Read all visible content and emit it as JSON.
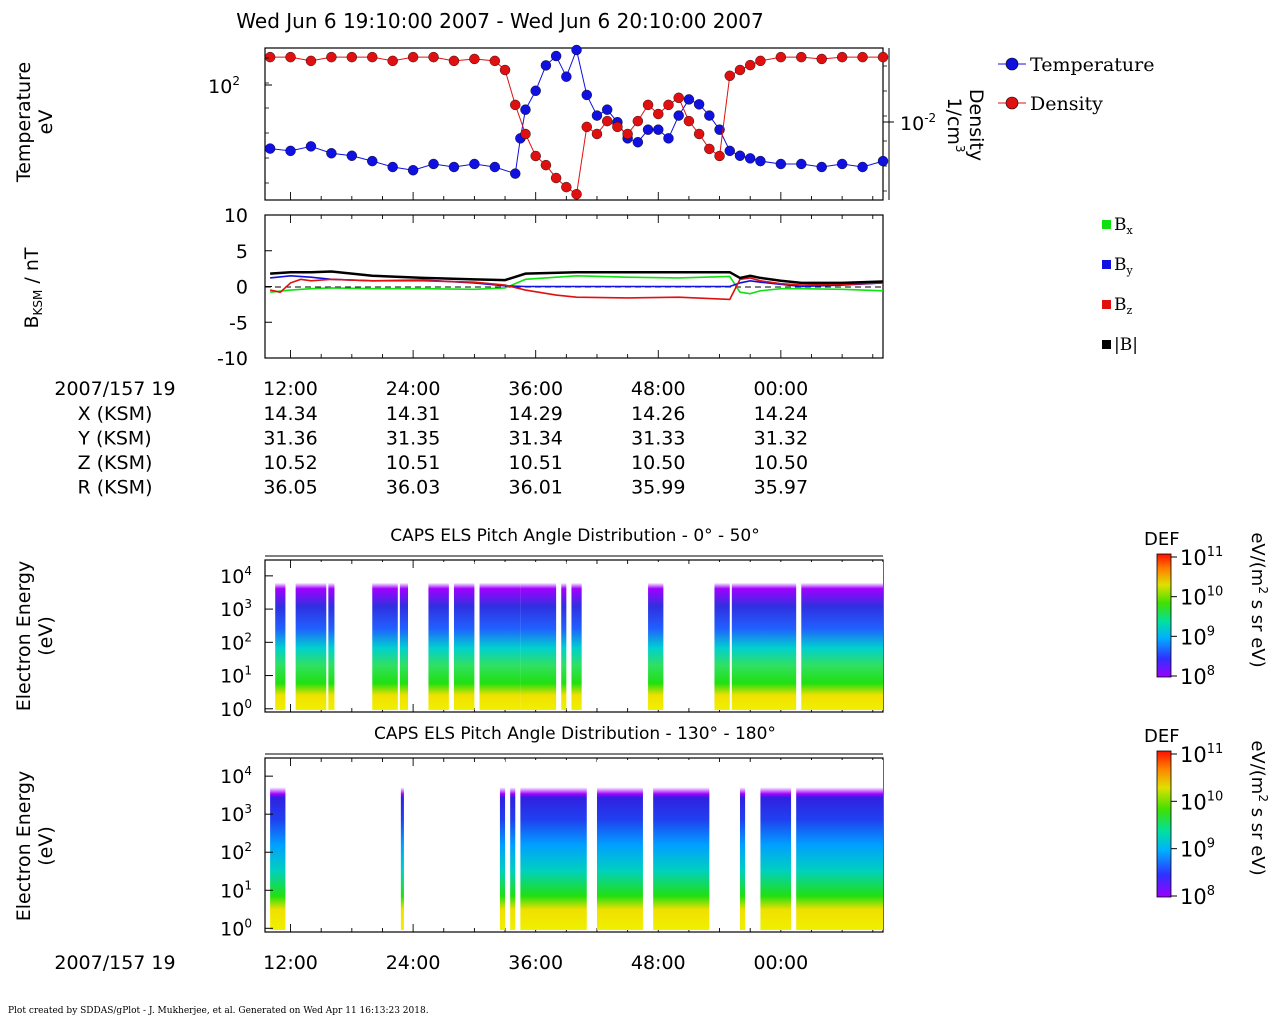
{
  "title": "Wed Jun  6 19:10:00 2007 - Wed Jun  6 20:10:00 2007",
  "footer": "Plot created by SDDAS/gPlot - J. Mukherjee, et al.  Generated on Wed Apr 11 16:13:23 2018.",
  "colors": {
    "temperature": "#1010e0",
    "density": "#e01010",
    "bx": "#10e010",
    "by": "#1010e0",
    "bz": "#e01010",
    "btot": "#000000"
  },
  "x_tick_labels": [
    "12:00",
    "24:00",
    "36:00",
    "48:00",
    "00:00"
  ],
  "ephemeris": {
    "header": "2007/157 19",
    "rows": [
      {
        "label": "X (KSM)",
        "values": [
          "14.34",
          "14.31",
          "14.29",
          "14.26",
          "14.24"
        ]
      },
      {
        "label": "Y (KSM)",
        "values": [
          "31.36",
          "31.35",
          "31.34",
          "31.33",
          "31.32"
        ]
      },
      {
        "label": "Z (KSM)",
        "values": [
          "10.52",
          "10.51",
          "10.51",
          "10.50",
          "10.50"
        ]
      },
      {
        "label": "R (KSM)",
        "values": [
          "36.05",
          "36.03",
          "36.01",
          "35.99",
          "35.97"
        ]
      }
    ]
  },
  "panel1": {
    "ylabel_line1": "Temperature",
    "ylabel_line2": "eV",
    "y2label_line1": "Density",
    "y2label_line2": "1/cm",
    "y2label_sup": "3",
    "ytick_base": "10",
    "ytick_exp": "2",
    "y2tick_base": "10",
    "y2tick_exp": "-2",
    "legend_temperature": "Temperature",
    "legend_density": "Density"
  },
  "panel2": {
    "ylabel_main": "B",
    "ylabel_sub": "KSM",
    "ylabel_rest": " / nT",
    "yticks": [
      "10",
      "5",
      "0",
      "-5",
      "-10"
    ],
    "legend": [
      {
        "main": "B",
        "sub": "x"
      },
      {
        "main": "B",
        "sub": "y"
      },
      {
        "main": "B",
        "sub": "z"
      },
      {
        "main": "|B|",
        "sub": ""
      }
    ]
  },
  "spectrogram1": {
    "title": "CAPS ELS Pitch Angle Distribution - 0° - 50°",
    "ylabel_line1": "Electron Energy",
    "ylabel_line2": "(eV)",
    "colorbar_title": "DEF",
    "colorbar_units": "eV/(m",
    "colorbar_units_sup": "2",
    "colorbar_units_rest": " s sr eV)"
  },
  "spectrogram2": {
    "title": "CAPS ELS Pitch Angle Distribution - 130° - 180°",
    "ylabel_line1": "Electron Energy",
    "ylabel_line2": "(eV)",
    "colorbar_title": "DEF",
    "colorbar_units": "eV/(m",
    "colorbar_units_sup": "2",
    "colorbar_units_rest": " s sr eV)"
  },
  "spectrogram_yticks": [
    {
      "base": "10",
      "exp": "4"
    },
    {
      "base": "10",
      "exp": "3"
    },
    {
      "base": "10",
      "exp": "2"
    },
    {
      "base": "10",
      "exp": "1"
    },
    {
      "base": "10",
      "exp": "0"
    }
  ],
  "colorbar_ticks": [
    {
      "base": "10",
      "exp": "11"
    },
    {
      "base": "10",
      "exp": "10"
    },
    {
      "base": "10",
      "exp": "9"
    },
    {
      "base": "10",
      "exp": "8"
    }
  ],
  "bottom_axis": {
    "header": "2007/157 19"
  },
  "chart_data": [
    {
      "type": "scatter",
      "title": "",
      "xlabel": "",
      "ylabel": "Temperature eV",
      "y2label": "Density 1/cm3",
      "x_unit": "minutes after 19:00",
      "xlim": [
        9.5,
        70
      ],
      "ylog": true,
      "series": [
        {
          "name": "Temperature",
          "axis": "left",
          "x": [
            10,
            12,
            14,
            16,
            18,
            20,
            22,
            24,
            26,
            28,
            30,
            32,
            34,
            34.5,
            35,
            36,
            37,
            38,
            39,
            40,
            41,
            42,
            43,
            44,
            45,
            46,
            47,
            48,
            49,
            50,
            51,
            52,
            53,
            54,
            55,
            56,
            57,
            58,
            60,
            62,
            64,
            66,
            68,
            70
          ],
          "y": [
            25,
            24,
            26,
            23,
            22,
            20,
            18,
            17,
            19,
            18,
            19,
            18,
            16,
            30,
            50,
            70,
            110,
            130,
            90,
            160,
            65,
            45,
            50,
            40,
            30,
            28,
            35,
            35,
            30,
            45,
            60,
            55,
            45,
            35,
            24,
            22,
            21,
            20,
            19,
            19,
            18,
            19,
            18,
            20
          ]
        },
        {
          "name": "Density",
          "axis": "right",
          "x": [
            10,
            12,
            14,
            16,
            18,
            20,
            22,
            24,
            26,
            28,
            30,
            32,
            33,
            34,
            35,
            36,
            37,
            38,
            39,
            40,
            41,
            42,
            43,
            44,
            45,
            46,
            47,
            48,
            49,
            50,
            51,
            52,
            53,
            54,
            55,
            56,
            57,
            58,
            60,
            62,
            64,
            66,
            68,
            70
          ],
          "y": [
            0.09,
            0.09,
            0.08,
            0.09,
            0.09,
            0.09,
            0.08,
            0.09,
            0.09,
            0.08,
            0.085,
            0.08,
            0.06,
            0.02,
            0.008,
            0.004,
            0.003,
            0.002,
            0.0015,
            0.0012,
            0.01,
            0.008,
            0.012,
            0.01,
            0.008,
            0.012,
            0.02,
            0.015,
            0.02,
            0.025,
            0.012,
            0.008,
            0.005,
            0.004,
            0.05,
            0.06,
            0.07,
            0.08,
            0.09,
            0.09,
            0.085,
            0.09,
            0.09,
            0.09
          ]
        }
      ]
    },
    {
      "type": "line",
      "title": "",
      "xlabel": "",
      "ylabel": "BKSM / nT",
      "x_unit": "minutes after 19:00",
      "xlim": [
        9.5,
        70
      ],
      "ylim": [
        -10,
        10
      ],
      "series": [
        {
          "name": "Bx",
          "x": [
            10,
            12,
            14,
            16,
            20,
            25,
            30,
            33,
            35,
            40,
            45,
            50,
            55,
            56,
            57,
            58,
            60,
            62,
            66,
            70
          ],
          "y": [
            -0.8,
            -0.5,
            -0.3,
            -0.2,
            -0.3,
            -0.3,
            -0.4,
            -0.2,
            1.0,
            1.5,
            1.3,
            1.2,
            1.4,
            -0.8,
            -1.0,
            -0.6,
            -0.3,
            -0.3,
            -0.4,
            -0.6
          ]
        },
        {
          "name": "By",
          "x": [
            10,
            12,
            14,
            16,
            20,
            25,
            30,
            33,
            35,
            40,
            45,
            50,
            55,
            56,
            57,
            58,
            60,
            62,
            66,
            70
          ],
          "y": [
            1.2,
            1.5,
            1.3,
            1.0,
            0.8,
            0.9,
            0.5,
            0.1,
            0.0,
            0.0,
            0.0,
            0.0,
            0.0,
            0.5,
            0.8,
            0.6,
            0.3,
            0.0,
            0.2,
            0.5
          ]
        },
        {
          "name": "Bz",
          "x": [
            10,
            11,
            12,
            13,
            14,
            16,
            20,
            25,
            30,
            33,
            35,
            38,
            40,
            45,
            50,
            55,
            56,
            57,
            58,
            60,
            62,
            66,
            70
          ],
          "y": [
            -0.5,
            -0.8,
            0.5,
            1.0,
            0.8,
            1.0,
            0.8,
            0.8,
            0.6,
            0.2,
            -0.5,
            -1.2,
            -1.5,
            -1.6,
            -1.5,
            -1.8,
            1.0,
            1.2,
            0.8,
            0.4,
            0.2,
            0.3,
            0.5
          ]
        },
        {
          "name": "|B|",
          "x": [
            10,
            12,
            14,
            16,
            20,
            25,
            30,
            33,
            35,
            40,
            45,
            50,
            55,
            56,
            57,
            58,
            60,
            62,
            66,
            70
          ],
          "y": [
            1.8,
            2.0,
            2.0,
            2.1,
            1.5,
            1.2,
            1.0,
            0.9,
            1.8,
            2.0,
            2.0,
            2.0,
            2.0,
            1.2,
            1.5,
            1.2,
            0.8,
            0.5,
            0.5,
            0.7
          ]
        }
      ]
    },
    {
      "type": "heatmap",
      "title": "CAPS ELS Pitch Angle Distribution - 0° - 50°",
      "xlabel": "",
      "ylabel": "Electron Energy (eV)",
      "ylog": true,
      "ylim": [
        0.8,
        30000
      ],
      "colorbar": "DEF eV/(m2 s sr eV)",
      "clim": [
        100000000,
        100000000000
      ],
      "data_intervals_minutes": [
        [
          10.5,
          11.5
        ],
        [
          12.5,
          15.5
        ],
        [
          15.7,
          16.3
        ],
        [
          20,
          22.5
        ],
        [
          22.7,
          23.5
        ],
        [
          25.5,
          27.5
        ],
        [
          28,
          30
        ],
        [
          30.5,
          34.5
        ],
        [
          34.5,
          38
        ],
        [
          38.5,
          39
        ],
        [
          39.5,
          40.5
        ],
        [
          47,
          48.5
        ],
        [
          53.5,
          55
        ],
        [
          55.2,
          61.5
        ],
        [
          62,
          70
        ]
      ]
    },
    {
      "type": "heatmap",
      "title": "CAPS ELS Pitch Angle Distribution - 130° - 180°",
      "xlabel": "",
      "ylabel": "Electron Energy (eV)",
      "ylog": true,
      "ylim": [
        0.8,
        30000
      ],
      "colorbar": "DEF eV/(m2 s sr eV)",
      "clim": [
        100000000,
        100000000000
      ],
      "data_intervals_minutes": [
        [
          10,
          11.5
        ],
        [
          22.8,
          23.1
        ],
        [
          32.5,
          33
        ],
        [
          33.5,
          34
        ],
        [
          34.5,
          41
        ],
        [
          42,
          46.5
        ],
        [
          47.5,
          53
        ],
        [
          56,
          56.5
        ],
        [
          58,
          61
        ],
        [
          61.5,
          70
        ]
      ]
    }
  ]
}
